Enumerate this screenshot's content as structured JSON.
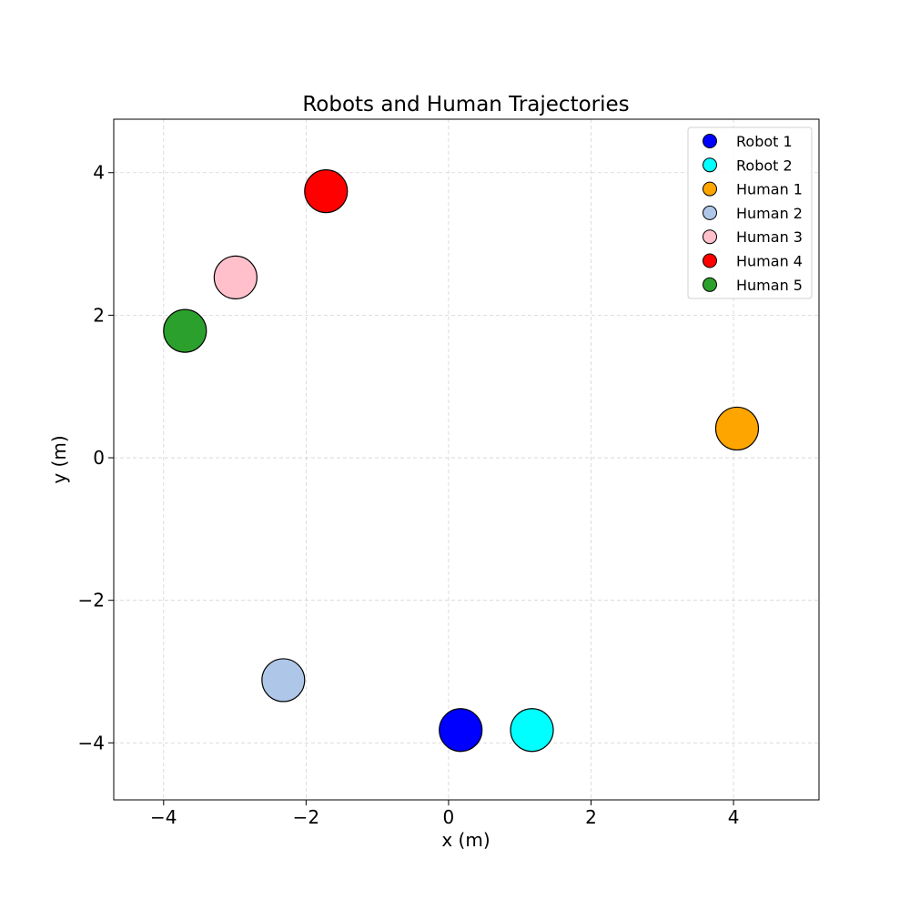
{
  "chart_data": {
    "type": "scatter",
    "title": "Robots and Human Trajectories",
    "xlabel": "x (m)",
    "ylabel": "y (m)",
    "xlim": [
      -4.7,
      5.2
    ],
    "ylim": [
      -4.8,
      4.75
    ],
    "xticks": [
      -4,
      -2,
      0,
      2,
      4
    ],
    "yticks": [
      -4,
      -2,
      0,
      2,
      4
    ],
    "xtick_labels": [
      "−4",
      "−2",
      "0",
      "2",
      "4"
    ],
    "ytick_labels": [
      "−4",
      "−2",
      "0",
      "2",
      "4"
    ],
    "grid": true,
    "legend_position": "top-right",
    "agent_radius": 0.3,
    "series": [
      {
        "name": "Robot 1",
        "color": "#0000ff",
        "x": 0.17,
        "y": -3.82
      },
      {
        "name": "Robot 2",
        "color": "#00ffff",
        "x": 1.17,
        "y": -3.82
      },
      {
        "name": "Human 1",
        "color": "#ffa500",
        "x": 4.05,
        "y": 0.41
      },
      {
        "name": "Human 2",
        "color": "#aec7e8",
        "x": -2.32,
        "y": -3.12
      },
      {
        "name": "Human 3",
        "color": "#ffc0cb",
        "x": -2.99,
        "y": 2.53
      },
      {
        "name": "Human 4",
        "color": "#ff0000",
        "x": -1.72,
        "y": 3.74
      },
      {
        "name": "Human 5",
        "color": "#2ca02c",
        "x": -3.7,
        "y": 1.78
      }
    ]
  }
}
